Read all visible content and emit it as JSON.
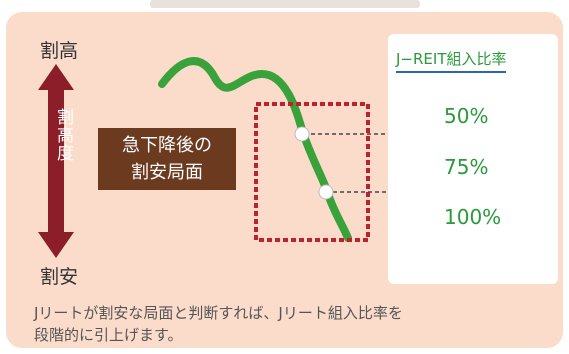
{
  "axis": {
    "top_label": "割高",
    "bottom_label": "割安",
    "middle_label": "割高度"
  },
  "callout": {
    "line1": "急下降後の",
    "line2": "割安局面"
  },
  "allocation_panel": {
    "title": "J−REIT組入比率",
    "levels": [
      "50%",
      "75%",
      "100%"
    ]
  },
  "caption": {
    "line1": "Jリートが割安な局面と判断すれば、Jリート組入比率を",
    "line2": "段階的に引上げます。"
  },
  "colors": {
    "background": "#fbdccb",
    "line": "#3aa23a",
    "highlight_box": "#c0202a",
    "axis_arrow": "#8b1e28",
    "callout": "#6b3a1f",
    "accent_text": "#2a9a3c"
  }
}
